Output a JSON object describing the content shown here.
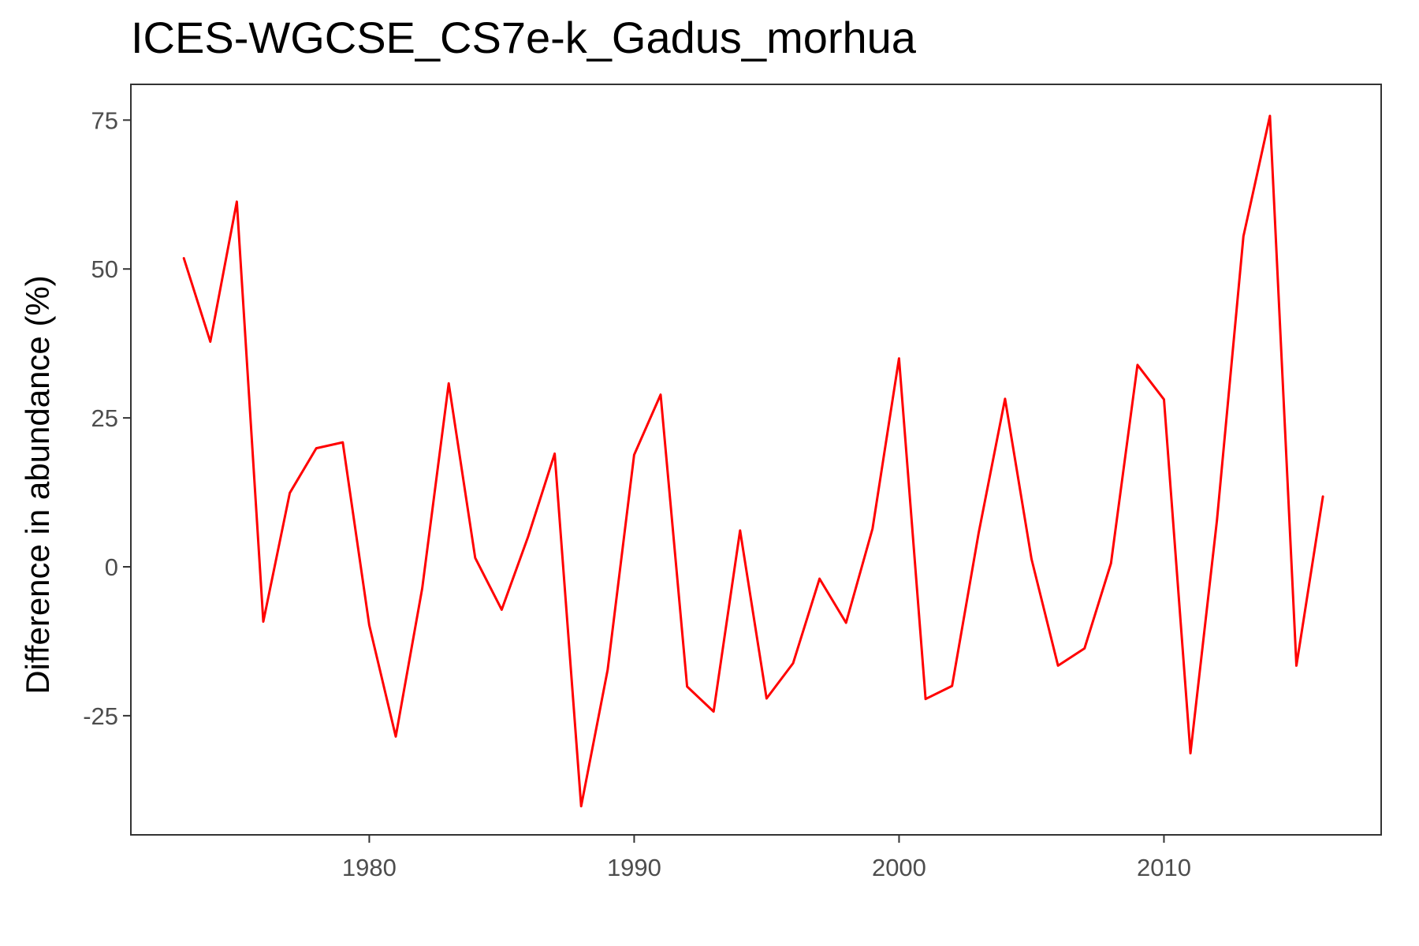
{
  "chart_data": {
    "type": "line",
    "title": "ICES-WGCSE_CS7e-k_Gadus_morhua",
    "xlabel": "",
    "ylabel": "Difference in abundance (%)",
    "xlim": [
      1971,
      2018.2
    ],
    "ylim": [
      -45,
      81
    ],
    "x_ticks": [
      1980,
      1990,
      2000,
      2010
    ],
    "y_ticks": [
      -25,
      0,
      25,
      50,
      75
    ],
    "grid": false,
    "series_color": "#ff0000",
    "series": [
      {
        "x": [
          1973,
          1974,
          1975,
          1976,
          1977,
          1978,
          1979,
          1980,
          1981,
          1982,
          1983,
          1984,
          1985,
          1986,
          1987,
          1988,
          1989,
          1990,
          1991,
          1992,
          1993,
          1994,
          1995,
          1996,
          1997,
          1998,
          1999,
          2000,
          2001,
          2002,
          2003,
          2004,
          2005,
          2006,
          2007,
          2008,
          2009,
          2010,
          2011,
          2012,
          2013,
          2014,
          2015,
          2016
        ],
        "values": [
          51.8,
          37.8,
          61.3,
          -9.2,
          12.4,
          19.9,
          20.9,
          -9.8,
          -28.5,
          -3.6,
          30.8,
          1.5,
          -7.2,
          5.1,
          19.0,
          -40.2,
          -17.3,
          18.8,
          28.9,
          -20.1,
          -24.3,
          6.1,
          -22.1,
          -16.2,
          -2.0,
          -9.4,
          6.4,
          35.0,
          -22.2,
          -20.0,
          5.6,
          28.2,
          1.3,
          -16.6,
          -13.7,
          0.6,
          33.9,
          28.1,
          -31.3,
          7.8,
          55.5,
          75.7,
          -16.6,
          11.8
        ]
      }
    ]
  }
}
